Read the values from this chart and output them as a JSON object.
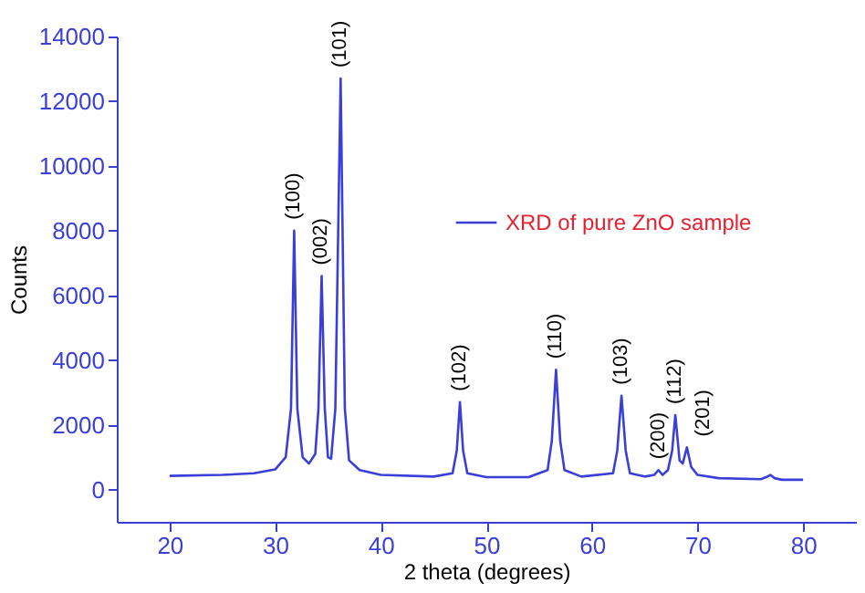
{
  "chart_data": {
    "type": "line",
    "xlabel": "2 theta (degrees)",
    "ylabel": "Counts",
    "xlim": [
      15,
      85
    ],
    "ylim": [
      -1000,
      14000
    ],
    "xticks": [
      20,
      30,
      40,
      50,
      60,
      70,
      80
    ],
    "yticks": [
      0,
      2000,
      4000,
      6000,
      8000,
      10000,
      12000,
      14000
    ],
    "grid": false,
    "legend": "top right",
    "marker": "none",
    "line_style": "solid",
    "series": [
      {
        "name": "XRD of pure ZnO sample",
        "color": "#3a3fd8",
        "x": [
          20,
          25,
          28,
          30,
          31,
          31.5,
          31.8,
          32.1,
          32.6,
          33.2,
          33.8,
          34.1,
          34.4,
          34.7,
          35,
          35.3,
          35.7,
          36.2,
          36.6,
          37,
          38,
          40,
          45,
          46.8,
          47.2,
          47.5,
          47.8,
          48.2,
          50,
          54,
          55.8,
          56.2,
          56.6,
          57,
          57.4,
          59,
          62,
          62.4,
          62.8,
          63.2,
          63.6,
          65,
          65.9,
          66.3,
          66.7,
          67.2,
          67.6,
          67.9,
          68.3,
          68.6,
          69,
          69.4,
          70,
          72,
          76,
          76.5,
          76.9,
          77.3,
          78,
          80
        ],
        "values": [
          420,
          450,
          500,
          620,
          1000,
          2500,
          8000,
          2500,
          1000,
          800,
          1100,
          2500,
          6600,
          2500,
          1000,
          950,
          2500,
          12700,
          2500,
          900,
          600,
          450,
          400,
          500,
          1200,
          2700,
          1200,
          500,
          380,
          380,
          600,
          1500,
          3700,
          1500,
          600,
          400,
          500,
          1200,
          2900,
          1200,
          500,
          400,
          450,
          600,
          450,
          600,
          1200,
          2300,
          900,
          800,
          1300,
          700,
          450,
          350,
          320,
          380,
          450,
          350,
          300,
          300
        ]
      }
    ],
    "annotations": [
      {
        "text": "(100)",
        "x": 31.8,
        "y": 8000
      },
      {
        "text": "(002)",
        "x": 34.4,
        "y": 6600
      },
      {
        "text": "(101)",
        "x": 36.2,
        "y": 12700
      },
      {
        "text": "(102)",
        "x": 47.5,
        "y": 2700
      },
      {
        "text": "(110)",
        "x": 56.6,
        "y": 3700
      },
      {
        "text": "(103)",
        "x": 62.8,
        "y": 2900
      },
      {
        "text": "(200)",
        "x": 66.3,
        "y": 600
      },
      {
        "text": "(112)",
        "x": 67.9,
        "y": 2300
      },
      {
        "text": "(201)",
        "x": 69,
        "y": 1300
      }
    ]
  }
}
